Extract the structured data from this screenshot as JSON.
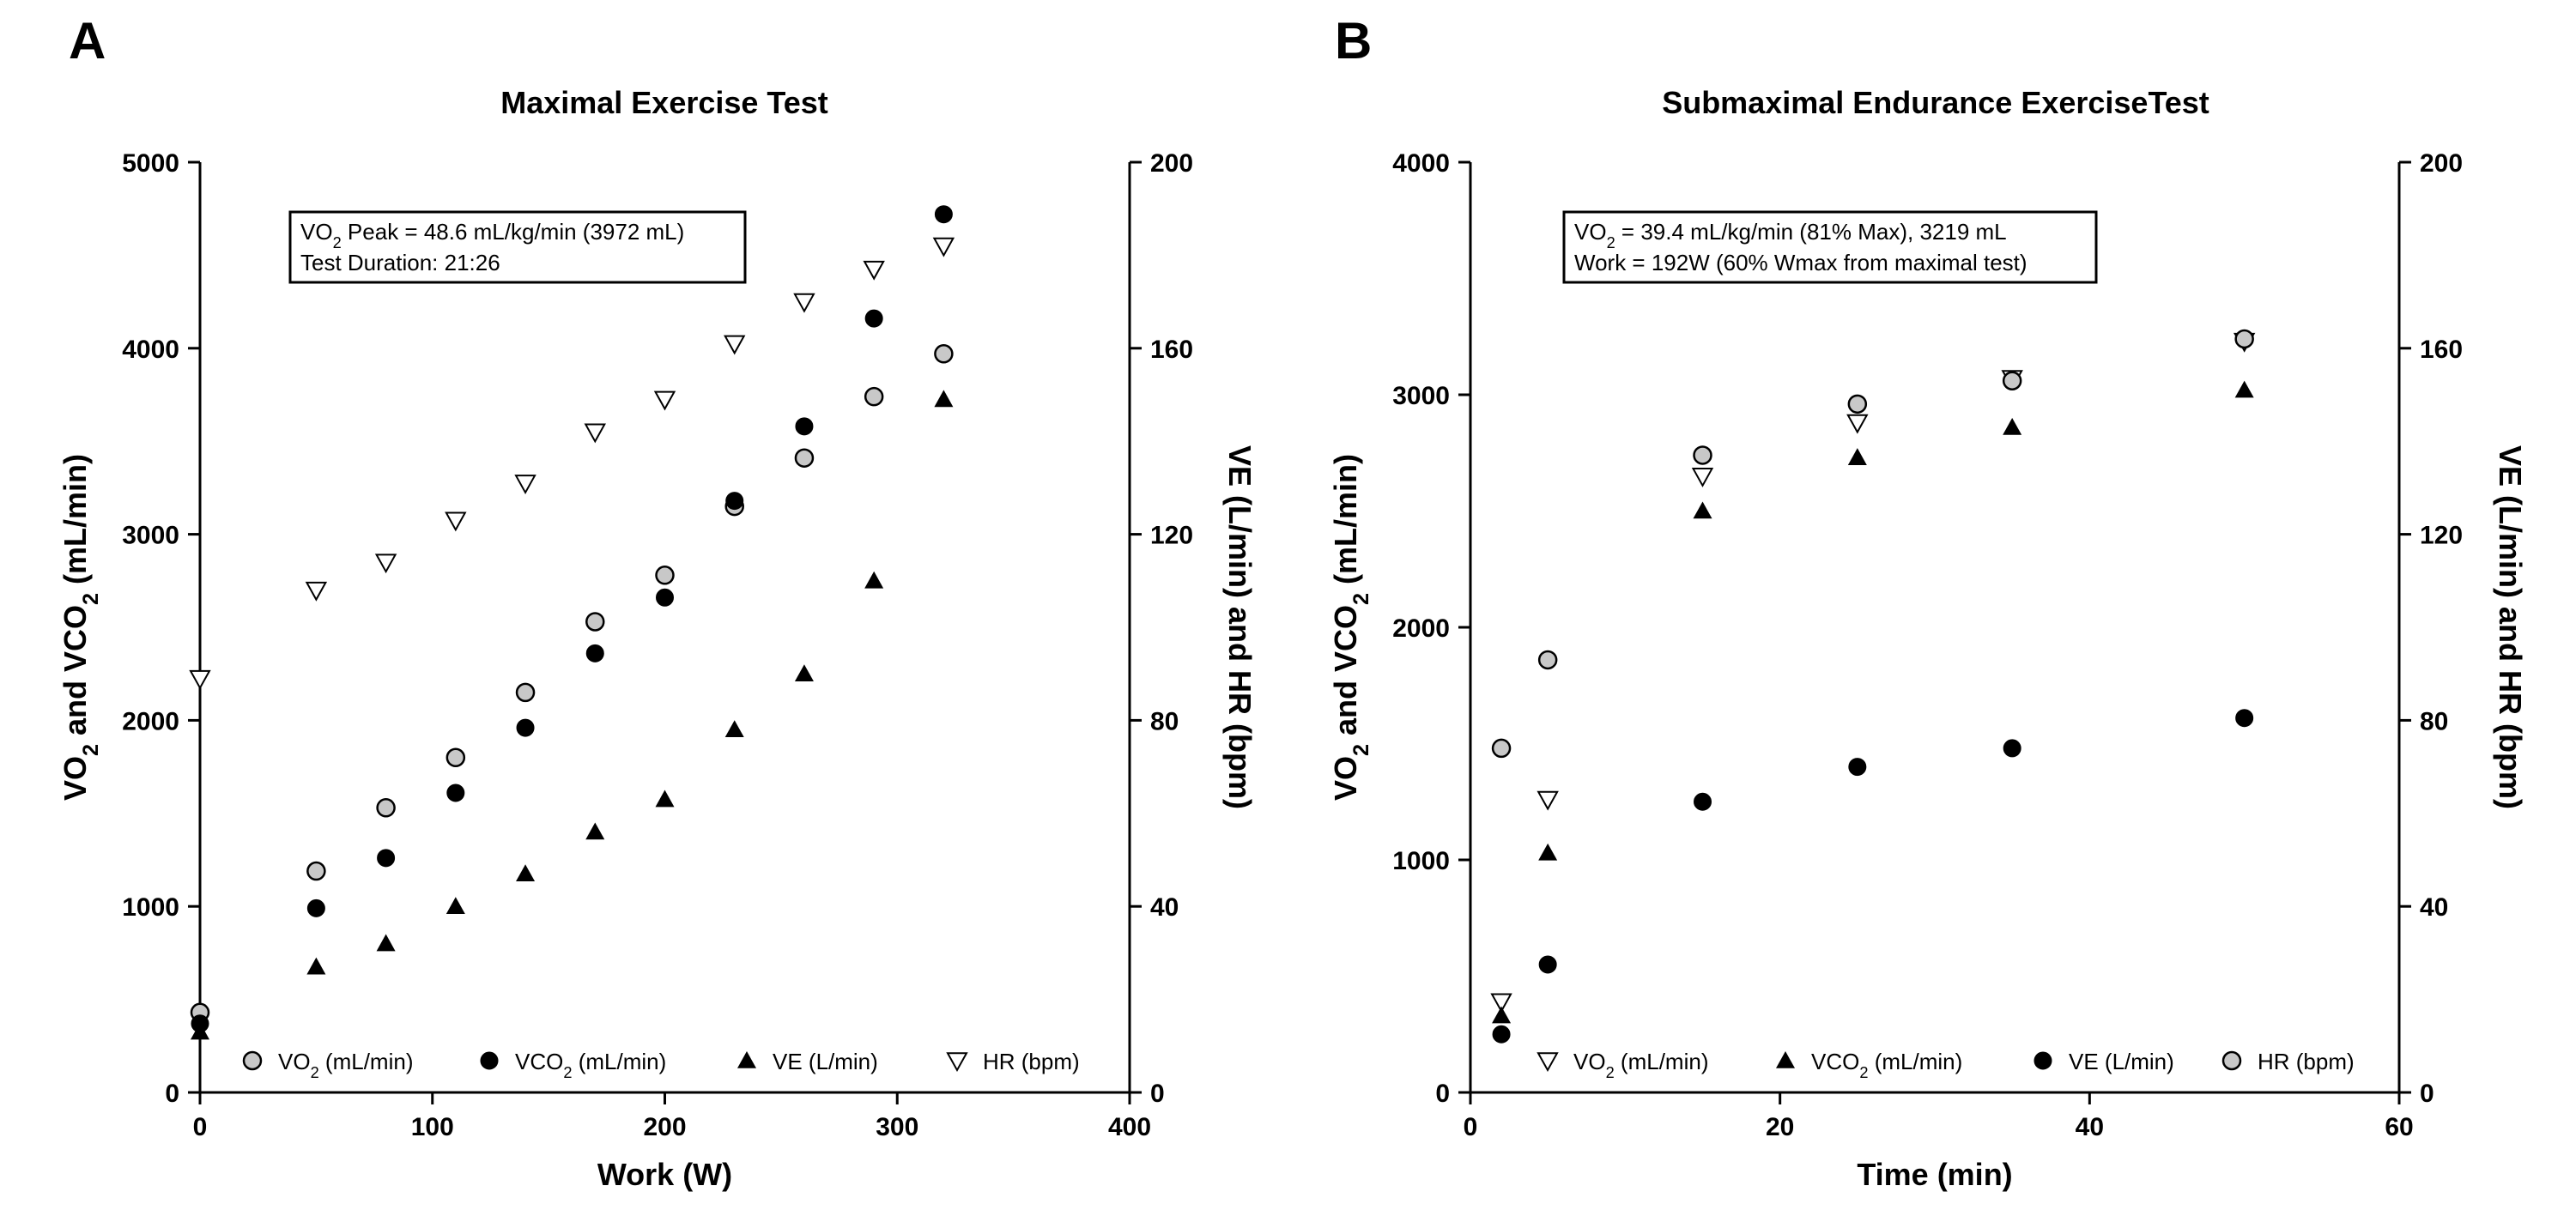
{
  "chart_data": [
    {
      "panel": "A",
      "type": "scatter",
      "title": "Maximal Exercise Test",
      "xlabel": "Work (W)",
      "ylabel": "VO2 and VCO2 (mL/min)",
      "ylabel_right": "VE (L/min) and HR (bpm)",
      "xlim": [
        0,
        400
      ],
      "ylim": [
        0,
        5000
      ],
      "ylim_right": [
        0,
        200
      ],
      "xticks": [
        0,
        100,
        200,
        300,
        400
      ],
      "yticks": [
        0,
        1000,
        2000,
        3000,
        4000,
        5000
      ],
      "yticks_right": [
        0,
        40,
        80,
        120,
        160,
        200
      ],
      "grid": false,
      "legend_position": "bottom",
      "annotation": [
        "VO2 Peak = 48.6 mL/kg/min (3972 mL)",
        "Test Duration: 21:26"
      ],
      "series": [
        {
          "name": "VO2 (mL/min)",
          "axis": "left",
          "marker": "circle-gray",
          "x": [
            0,
            50,
            80,
            110,
            140,
            170,
            200,
            230,
            260,
            290,
            320
          ],
          "y": [
            430,
            1190,
            1530,
            1800,
            2150,
            2530,
            2780,
            3150,
            3410,
            3740,
            3970
          ]
        },
        {
          "name": "VCO2 (mL/min)",
          "axis": "left",
          "marker": "circle-black",
          "x": [
            0,
            50,
            80,
            110,
            140,
            170,
            200,
            230,
            260,
            290,
            320
          ],
          "y": [
            370,
            990,
            1260,
            1610,
            1960,
            2360,
            2660,
            3180,
            3580,
            4160,
            4720
          ]
        },
        {
          "name": "VE (L/min)",
          "axis": "right",
          "marker": "triangle-up",
          "x": [
            0,
            50,
            80,
            110,
            140,
            170,
            200,
            230,
            260,
            290,
            320
          ],
          "y": [
            13,
            27,
            32,
            40,
            47,
            56,
            63,
            78,
            90,
            110,
            149
          ]
        },
        {
          "name": "HR (bpm)",
          "axis": "right",
          "marker": "triangle-down",
          "x": [
            0,
            50,
            80,
            110,
            140,
            170,
            200,
            230,
            260,
            290,
            320
          ],
          "y": [
            89,
            108,
            114,
            123,
            131,
            142,
            149,
            161,
            170,
            177,
            182
          ]
        }
      ]
    },
    {
      "panel": "B",
      "type": "scatter",
      "title": "Submaximal Endurance ExerciseTest",
      "xlabel": "Time (min)",
      "ylabel": "VO2 and VCO2 (mL/min)",
      "ylabel_right": "VE (L/min) and HR (bpm)",
      "xlim": [
        0,
        60
      ],
      "ylim": [
        0,
        4000
      ],
      "ylim_right": [
        0,
        200
      ],
      "xticks": [
        0,
        20,
        40,
        60
      ],
      "yticks": [
        0,
        1000,
        2000,
        3000,
        4000
      ],
      "yticks_right": [
        0,
        40,
        80,
        120,
        160,
        200
      ],
      "grid": false,
      "legend_position": "bottom",
      "annotation": [
        "VO2 = 39.4 mL/kg/min (81% Max), 3219 mL",
        "Work = 192W (60% Wmax from maximal test)"
      ],
      "series": [
        {
          "name": "VO2 (mL/min)",
          "axis": "left",
          "marker": "triangle-down",
          "x": [
            2,
            5,
            15,
            25,
            35,
            50
          ],
          "y": [
            390,
            1260,
            2650,
            2880,
            3070,
            3230
          ]
        },
        {
          "name": "VCO2 (mL/min)",
          "axis": "left",
          "marker": "triangle-up",
          "x": [
            2,
            5,
            15,
            25,
            35,
            50
          ],
          "y": [
            330,
            1030,
            2500,
            2730,
            2860,
            3020
          ]
        },
        {
          "name": "VE (L/min)",
          "axis": "left",
          "marker": "circle-black",
          "x": [
            2,
            5,
            15,
            25,
            35,
            50
          ],
          "y": [
            250,
            550,
            1250,
            1400,
            1480,
            1610
          ]
        },
        {
          "name": "HR (bpm)",
          "axis": "right",
          "marker": "circle-gray",
          "x": [
            2,
            5,
            15,
            25,
            35,
            50
          ],
          "y": [
            74,
            93,
            137,
            148,
            153,
            162
          ]
        }
      ]
    }
  ]
}
